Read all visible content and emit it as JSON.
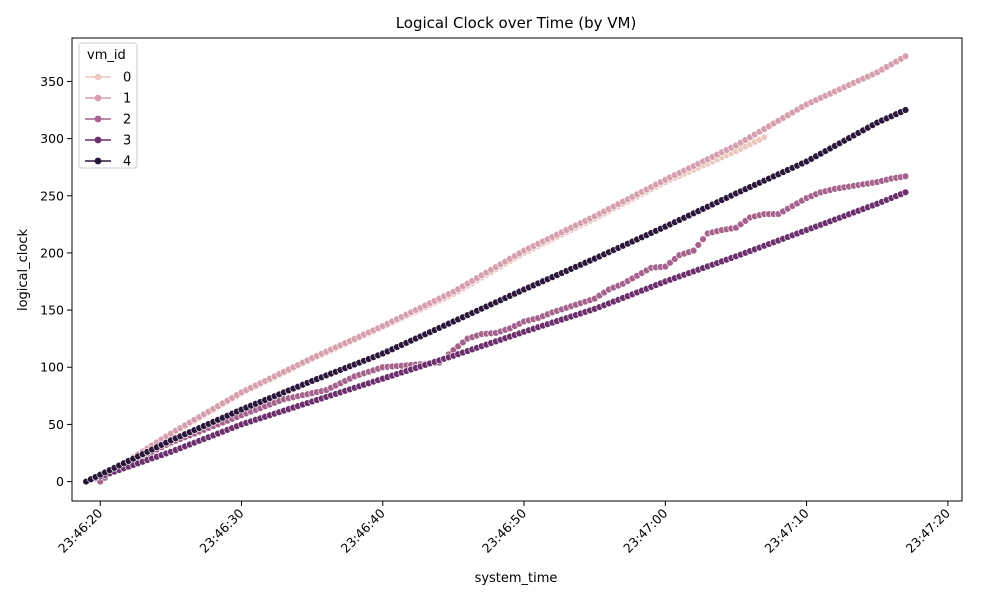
{
  "chart_data": {
    "type": "line",
    "title": "Logical Clock over Time (by VM)",
    "xlabel": "system_time",
    "ylabel": "logical_clock",
    "x_unit": "time (HH:MM:SS)",
    "xlim": [
      "23:46:18",
      "23:47:21"
    ],
    "ylim": [
      -17,
      388
    ],
    "x_ticks": [
      "23:46:20",
      "23:46:30",
      "23:46:40",
      "23:46:50",
      "23:47:00",
      "23:47:10",
      "23:47:20"
    ],
    "y_ticks": [
      0,
      50,
      100,
      150,
      200,
      250,
      300,
      350
    ],
    "grid": false,
    "legend": {
      "title": "vm_id",
      "placement": "top-left",
      "entries": [
        "0",
        "1",
        "2",
        "3",
        "4"
      ]
    },
    "marker": "circle",
    "series": [
      {
        "name": "0",
        "color": "#ebc9c0",
        "points": [
          [
            "23:46:20",
            3
          ],
          [
            "23:46:25",
            41
          ],
          [
            "23:46:30",
            77
          ],
          [
            "23:46:35",
            107
          ],
          [
            "23:46:40",
            135
          ],
          [
            "23:46:45",
            164
          ],
          [
            "23:46:50",
            200
          ],
          [
            "23:46:55",
            230
          ],
          [
            "23:47:00",
            262
          ],
          [
            "23:47:05",
            289
          ],
          [
            "23:47:07",
            301
          ]
        ]
      },
      {
        "name": "1",
        "color": "#d69fae",
        "points": [
          [
            "23:46:20",
            3
          ],
          [
            "23:46:25",
            42
          ],
          [
            "23:46:30",
            78
          ],
          [
            "23:46:35",
            108
          ],
          [
            "23:46:40",
            136
          ],
          [
            "23:46:45",
            166
          ],
          [
            "23:46:50",
            202
          ],
          [
            "23:46:55",
            232
          ],
          [
            "23:47:00",
            264
          ],
          [
            "23:47:05",
            294
          ],
          [
            "23:47:10",
            330
          ],
          [
            "23:47:15",
            358
          ],
          [
            "23:47:17",
            372
          ]
        ]
      },
      {
        "name": "2",
        "color": "#a5638c",
        "points": [
          [
            "23:46:20",
            0
          ],
          [
            "23:46:21",
            10
          ],
          [
            "23:46:25",
            34
          ],
          [
            "23:46:30",
            58
          ],
          [
            "23:46:33",
            72
          ],
          [
            "23:46:36",
            80
          ],
          [
            "23:46:38",
            92
          ],
          [
            "23:46:40",
            100
          ],
          [
            "23:46:42",
            102
          ],
          [
            "23:46:44",
            104
          ],
          [
            "23:46:45",
            115
          ],
          [
            "23:46:46",
            125
          ],
          [
            "23:46:47",
            129
          ],
          [
            "23:46:48",
            130
          ],
          [
            "23:46:49",
            134
          ],
          [
            "23:46:50",
            140
          ],
          [
            "23:46:51",
            143
          ],
          [
            "23:46:52",
            148
          ],
          [
            "23:46:53",
            152
          ],
          [
            "23:46:54",
            156
          ],
          [
            "23:46:55",
            160
          ],
          [
            "23:46:56",
            168
          ],
          [
            "23:46:57",
            173
          ],
          [
            "23:46:58",
            180
          ],
          [
            "23:46:59",
            187
          ],
          [
            "23:47:00",
            188
          ],
          [
            "23:47:01",
            198
          ],
          [
            "23:47:02",
            202
          ],
          [
            "23:47:03",
            217
          ],
          [
            "23:47:04",
            220
          ],
          [
            "23:47:05",
            222
          ],
          [
            "23:47:06",
            231
          ],
          [
            "23:47:07",
            234
          ],
          [
            "23:47:08",
            234
          ],
          [
            "23:47:09",
            241
          ],
          [
            "23:47:10",
            248
          ],
          [
            "23:47:11",
            253
          ],
          [
            "23:47:12",
            256
          ],
          [
            "23:47:13",
            258
          ],
          [
            "23:47:14",
            260
          ],
          [
            "23:47:15",
            262
          ],
          [
            "23:47:16",
            265
          ],
          [
            "23:47:17",
            267
          ]
        ]
      },
      {
        "name": "3",
        "color": "#6b2f6c",
        "points": [
          [
            "23:46:19",
            0
          ],
          [
            "23:46:25",
            26
          ],
          [
            "23:46:30",
            50
          ],
          [
            "23:46:35",
            70
          ],
          [
            "23:46:40",
            90
          ],
          [
            "23:46:45",
            110
          ],
          [
            "23:46:50",
            131
          ],
          [
            "23:46:55",
            151
          ],
          [
            "23:47:00",
            175
          ],
          [
            "23:47:05",
            197
          ],
          [
            "23:47:10",
            220
          ],
          [
            "23:47:15",
            243
          ],
          [
            "23:47:17",
            253
          ]
        ]
      },
      {
        "name": "4",
        "color": "#2a1639",
        "points": [
          [
            "23:46:19",
            0
          ],
          [
            "23:46:25",
            36
          ],
          [
            "23:46:30",
            63
          ],
          [
            "23:46:35",
            88
          ],
          [
            "23:46:40",
            112
          ],
          [
            "23:46:45",
            140
          ],
          [
            "23:46:50",
            168
          ],
          [
            "23:46:55",
            195
          ],
          [
            "23:47:00",
            223
          ],
          [
            "23:47:05",
            252
          ],
          [
            "23:47:10",
            280
          ],
          [
            "23:47:15",
            314
          ],
          [
            "23:47:17",
            325
          ]
        ]
      }
    ]
  }
}
